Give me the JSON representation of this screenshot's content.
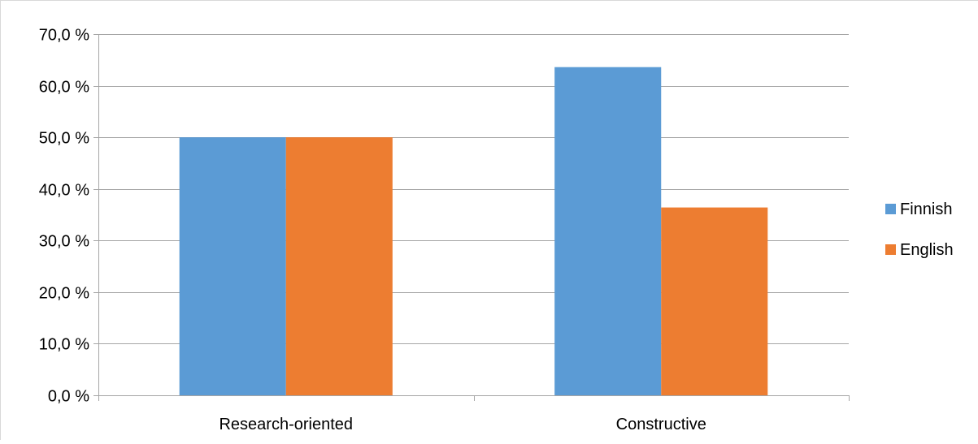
{
  "chart_data": {
    "type": "bar",
    "categories": [
      "Research-oriented",
      "Constructive"
    ],
    "series": [
      {
        "name": "Finnish",
        "values": [
          50.0,
          63.6
        ],
        "color": "#5b9bd5"
      },
      {
        "name": "English",
        "values": [
          50.0,
          36.4
        ],
        "color": "#ed7d31"
      }
    ],
    "ylim": [
      0,
      70
    ],
    "yticks": [
      "0,0 %",
      "10,0 %",
      "20,0 %",
      "30,0 %",
      "40,0 %",
      "50,0 %",
      "60,0 %",
      "70,0 %"
    ],
    "ytick_values": [
      0,
      10,
      20,
      30,
      40,
      50,
      60,
      70
    ],
    "grid": true,
    "legend_position": "right",
    "gridline_color": "#a6a6a6"
  }
}
